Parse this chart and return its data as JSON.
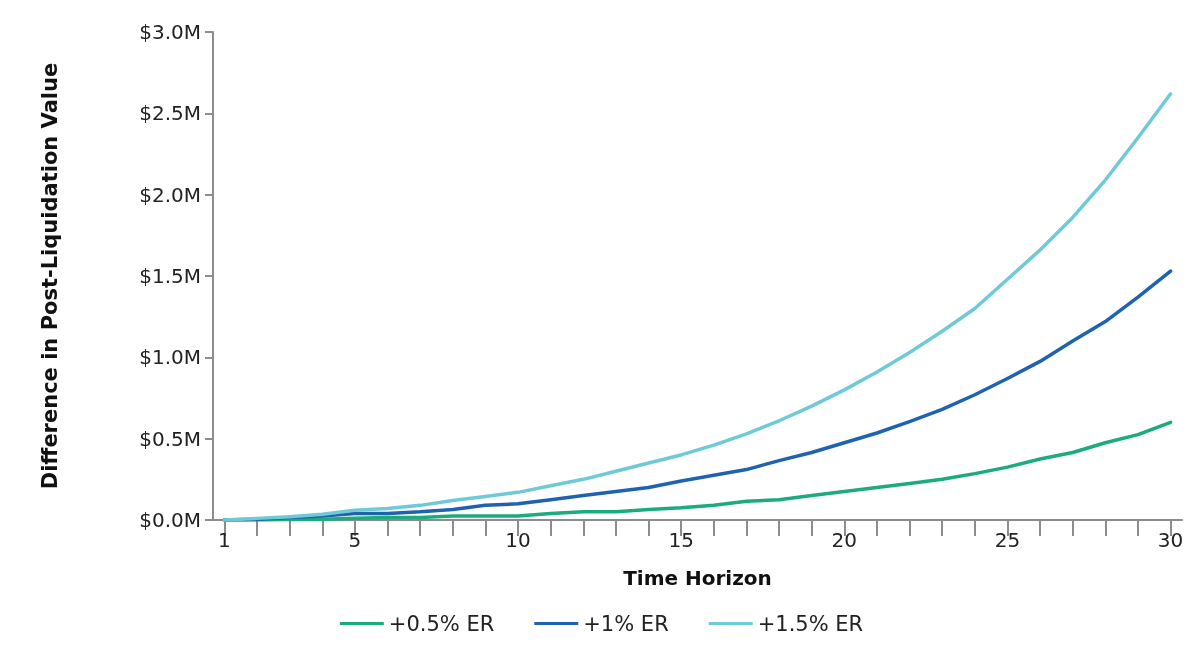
{
  "chart_data": {
    "type": "line",
    "xlabel": "Time Horizon",
    "ylabel": "Difference in Post-Liquidation Value",
    "x": [
      1,
      2,
      3,
      4,
      5,
      6,
      7,
      8,
      9,
      10,
      11,
      12,
      13,
      14,
      15,
      16,
      17,
      18,
      19,
      20,
      21,
      22,
      23,
      24,
      25,
      26,
      27,
      28,
      29,
      30
    ],
    "series": [
      {
        "name": "+0.5% ER",
        "color": "#1aab7e",
        "values": [
          0,
          0,
          0.003,
          0.005,
          0.01,
          0.015,
          0.015,
          0.025,
          0.025,
          0.025,
          0.04,
          0.05,
          0.05,
          0.065,
          0.075,
          0.09,
          0.115,
          0.125,
          0.15,
          0.175,
          0.2,
          0.225,
          0.25,
          0.285,
          0.325,
          0.375,
          0.415,
          0.475,
          0.525,
          0.6
        ]
      },
      {
        "name": "+1% ER",
        "color": "#1f62b0",
        "values": [
          0,
          0.005,
          0.015,
          0.025,
          0.04,
          0.04,
          0.05,
          0.065,
          0.09,
          0.1,
          0.125,
          0.15,
          0.175,
          0.2,
          0.24,
          0.275,
          0.31,
          0.365,
          0.415,
          0.475,
          0.535,
          0.605,
          0.68,
          0.77,
          0.87,
          0.975,
          1.1,
          1.22,
          1.37,
          1.53
        ]
      },
      {
        "name": "+1.5% ER",
        "color": "#6ecad6",
        "values": [
          0,
          0.01,
          0.02,
          0.035,
          0.06,
          0.07,
          0.09,
          0.12,
          0.145,
          0.17,
          0.21,
          0.25,
          0.3,
          0.35,
          0.4,
          0.46,
          0.53,
          0.61,
          0.7,
          0.8,
          0.91,
          1.03,
          1.16,
          1.3,
          1.48,
          1.66,
          1.86,
          2.09,
          2.35,
          2.62
        ]
      }
    ],
    "xlim": [
      0.65,
      30.35
    ],
    "xticks": [
      1,
      {
        "value": 2,
        "label": null
      },
      {
        "value": 3,
        "label": null
      },
      {
        "value": 4,
        "label": null
      },
      5,
      {
        "value": 6,
        "label": null
      },
      {
        "value": 7,
        "label": null
      },
      {
        "value": 8,
        "label": null
      },
      {
        "value": 9,
        "label": null
      },
      10,
      {
        "value": 11,
        "label": null
      },
      {
        "value": 12,
        "label": null
      },
      {
        "value": 13,
        "label": null
      },
      {
        "value": 14,
        "label": null
      },
      15,
      {
        "value": 16,
        "label": null
      },
      {
        "value": 17,
        "label": null
      },
      {
        "value": 18,
        "label": null
      },
      {
        "value": 19,
        "label": null
      },
      20,
      {
        "value": 21,
        "label": null
      },
      {
        "value": 22,
        "label": null
      },
      {
        "value": 23,
        "label": null
      },
      {
        "value": 24,
        "label": null
      },
      25,
      {
        "value": 26,
        "label": null
      },
      {
        "value": 27,
        "label": null
      },
      {
        "value": 28,
        "label": null
      },
      {
        "value": 29,
        "label": null
      },
      30
    ],
    "ylim": [
      0,
      3
    ],
    "yticks": [
      {
        "value": 0,
        "label": "$0.0M"
      },
      {
        "value": 0.5,
        "label": "$0.5M"
      },
      {
        "value": 1,
        "label": "$1.0M"
      },
      {
        "value": 1.5,
        "label": "$1.5M"
      },
      {
        "value": 2,
        "label": "$2.0M"
      },
      {
        "value": 2.5,
        "label": "$2.5M"
      },
      {
        "value": 3,
        "label": "$3.0M"
      }
    ],
    "grid": false,
    "legend": "bottom",
    "marker": "none",
    "line_style": "solid"
  }
}
